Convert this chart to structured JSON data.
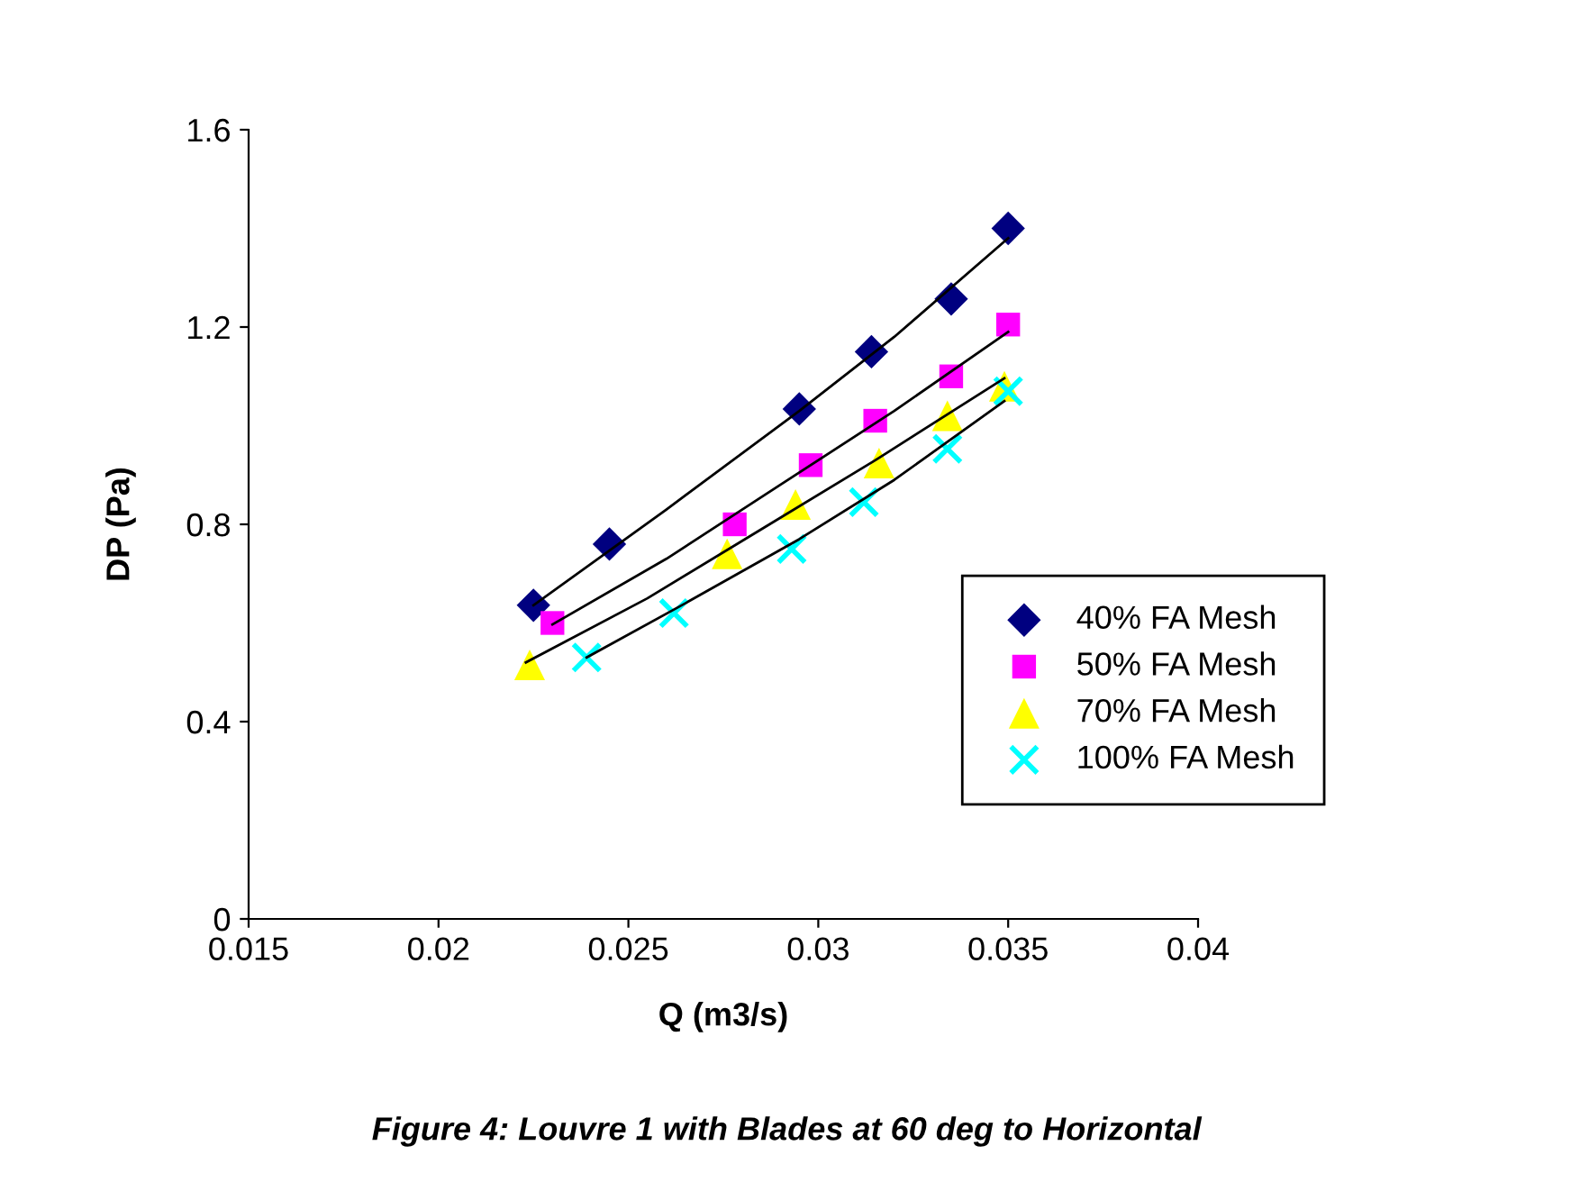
{
  "chart_data": {
    "type": "scatter",
    "title": "Figure 4: Louvre 1 with Blades at 60 deg to Horizontal",
    "xlabel": "Q (m3/s)",
    "ylabel": "DP (Pa)",
    "xlim": [
      0.015,
      0.04
    ],
    "xticks": [
      0.015,
      0.02,
      0.025,
      0.03,
      0.035,
      0.04
    ],
    "ylim": [
      0,
      1.6
    ],
    "yticks": [
      {
        "value": 0,
        "label": "0"
      },
      {
        "value": 0.4,
        "label": "0.4"
      },
      {
        "value": 0.8,
        "label": "0.8"
      },
      {
        "value": 1.2,
        "label": "1.2"
      },
      {
        "value": 1.6,
        "label": "1.6"
      }
    ],
    "grid": false,
    "legend": "right",
    "series": [
      {
        "name": "40% FA Mesh",
        "color": "#000080",
        "marker": "diamond",
        "x": [
          0.0225,
          0.0245,
          0.0295,
          0.0314,
          0.0335,
          0.035
        ],
        "values": [
          0.636,
          0.76,
          1.034,
          1.15,
          1.257,
          1.4
        ]
      },
      {
        "name": "50% FA Mesh",
        "color": "#ff00ff",
        "marker": "square",
        "x": [
          0.023,
          0.0278,
          0.0298,
          0.0315,
          0.0335,
          0.035
        ],
        "values": [
          0.6,
          0.8,
          0.92,
          1.01,
          1.1,
          1.205
        ]
      },
      {
        "name": "70% FA Mesh",
        "color": "#ffff00",
        "marker": "triangle",
        "x": [
          0.0224,
          0.0276,
          0.0294,
          0.0316,
          0.0334,
          0.0349
        ],
        "values": [
          0.515,
          0.74,
          0.84,
          0.924,
          1.02,
          1.08
        ]
      },
      {
        "name": "100% FA Mesh",
        "color": "#00ffff",
        "marker": "cross",
        "x": [
          0.0239,
          0.0262,
          0.0293,
          0.0312,
          0.0334,
          0.035
        ],
        "values": [
          0.53,
          0.62,
          0.75,
          0.845,
          0.953,
          1.07
        ]
      },
      {
        "type": "line",
        "color": "#000000",
        "marker": "none",
        "x": [
          0.0225,
          0.026,
          0.0295,
          0.032,
          0.035
        ],
        "values": [
          0.636,
          0.83,
          1.03,
          1.18,
          1.38
        ]
      },
      {
        "type": "line",
        "color": "#000000",
        "marker": "none",
        "x": [
          0.023,
          0.026,
          0.029,
          0.032,
          0.035
        ],
        "values": [
          0.597,
          0.73,
          0.88,
          1.03,
          1.19
        ]
      },
      {
        "type": "line",
        "color": "#000000",
        "marker": "none",
        "x": [
          0.0223,
          0.0255,
          0.0285,
          0.0315,
          0.0349
        ],
        "values": [
          0.52,
          0.65,
          0.79,
          0.93,
          1.096
        ]
      },
      {
        "type": "line",
        "color": "#000000",
        "marker": "none",
        "x": [
          0.0239,
          0.0265,
          0.0295,
          0.032,
          0.0349
        ],
        "values": [
          0.53,
          0.64,
          0.77,
          0.89,
          1.05
        ]
      }
    ]
  }
}
